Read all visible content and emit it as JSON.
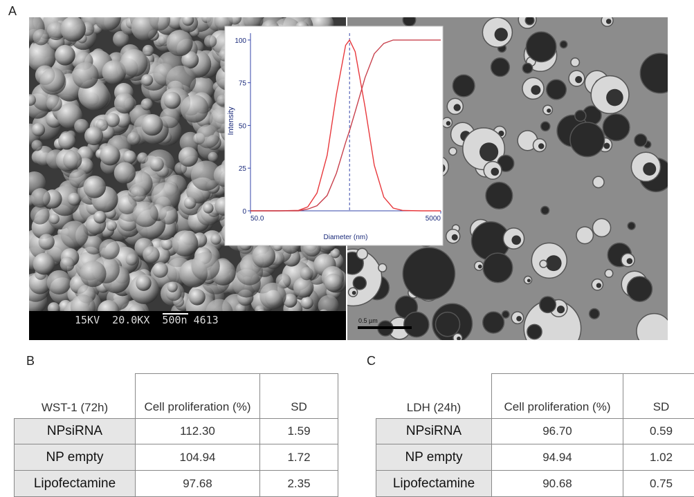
{
  "figure": {
    "panel_a": {
      "label": "A",
      "sem_caption": "15KV  20.0KX  500n 4613",
      "tem_scale": "0.5 µm"
    },
    "chart_data": {
      "type": "line",
      "ylabel": "Intensity",
      "xlabel": "Diameter (nm)",
      "log_x": true,
      "xlim": [
        50,
        5000
      ],
      "xticks": [
        {
          "value": 50,
          "label": "50.0"
        },
        5000
      ],
      "ylim": [
        0,
        104
      ],
      "yticks": [
        0,
        25,
        50,
        75,
        100
      ],
      "x": [
        50,
        100,
        160,
        200,
        250,
        320,
        400,
        500,
        550,
        630,
        800,
        1000,
        1260,
        1580,
        2000,
        3160,
        5000
      ],
      "series": [
        {
          "color": "#e8383c",
          "values": [
            0,
            0,
            0.3,
            2.3,
            10.4,
            32.5,
            68.2,
            96.9,
            100,
            93.2,
            60.7,
            26.7,
            8.0,
            1.6,
            0.2,
            0,
            0
          ]
        },
        {
          "color": "#c8404c",
          "values": [
            0,
            0,
            0,
            1,
            3,
            9,
            22,
            40,
            47,
            58,
            78,
            92,
            98,
            100,
            100,
            100,
            100
          ]
        }
      ]
    },
    "tables": [
      {
        "label": "B",
        "header": [
          "WST-1 (72h)",
          "Cell proliferation (%)",
          "SD"
        ],
        "rows": [
          [
            "NPsiRNA",
            "112.30",
            "1.59"
          ],
          [
            "NP empty",
            "104.94",
            "1.72"
          ],
          [
            "Lipofectamine",
            "97.68",
            "2.35"
          ]
        ]
      },
      {
        "label": "C",
        "header": [
          "LDH (24h)",
          "Cell proliferation (%)",
          "SD"
        ],
        "rows": [
          [
            "NPsiRNA",
            "96.70",
            "0.59"
          ],
          [
            "NP empty",
            "94.94",
            "1.02"
          ],
          [
            "Lipofectamine",
            "90.68",
            "0.75"
          ]
        ]
      }
    ]
  }
}
